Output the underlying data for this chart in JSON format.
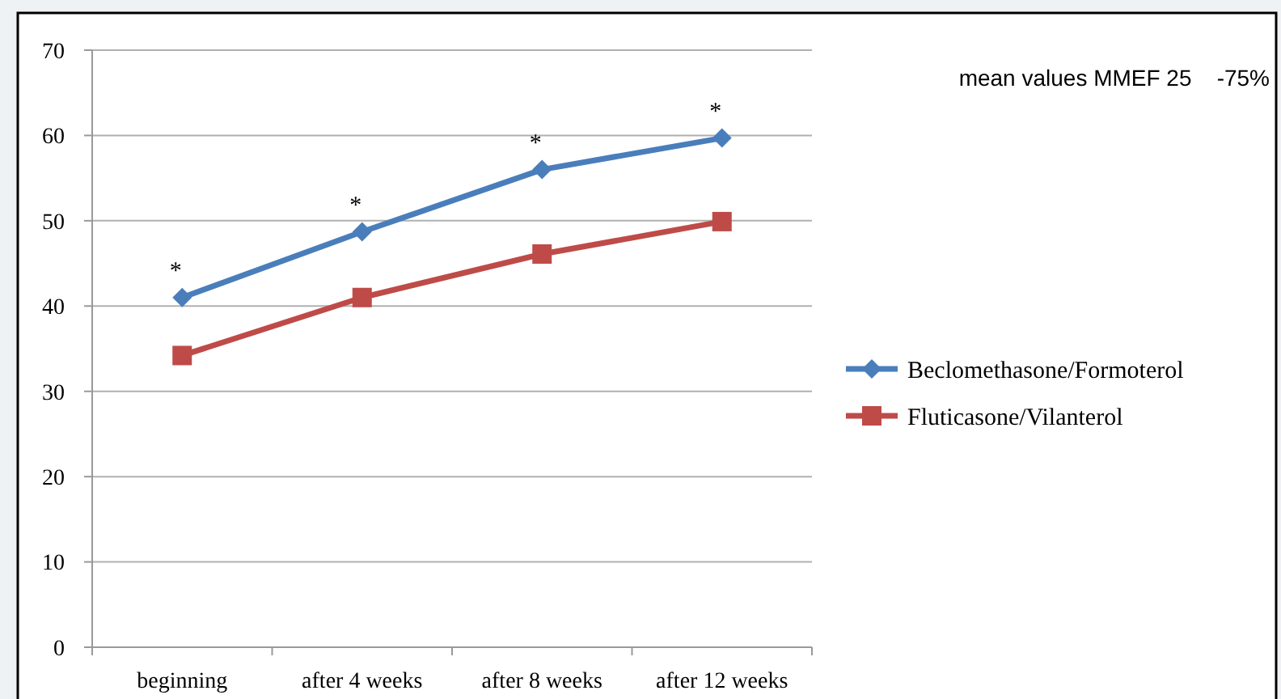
{
  "chart_data": {
    "type": "line",
    "title": "mean values MMEF 25    -75%",
    "categories": [
      "beginning",
      "after 4 weeks",
      "after 8 weeks",
      "after 12 weeks"
    ],
    "series": [
      {
        "name": "Beclomethasone/Formoterol",
        "color": "#4a7ebb",
        "values": [
          41,
          48.7,
          56,
          59.7
        ],
        "marker": "diamond"
      },
      {
        "name": "Fluticasone/Vilanterol",
        "color": "#be4b48",
        "values": [
          34.2,
          41,
          46.1,
          49.9
        ],
        "marker": "square"
      }
    ],
    "annotations": [
      {
        "text": "*",
        "x": "beginning",
        "y": 41
      },
      {
        "text": "*",
        "x": "after 4 weeks",
        "y": 48.7
      },
      {
        "text": "*",
        "x": "after 8 weeks",
        "y": 56
      },
      {
        "text": "*",
        "x": "after 12 weeks",
        "y": 59.7
      }
    ],
    "ylim": [
      0,
      70
    ],
    "yticks": [
      0,
      10,
      20,
      30,
      40,
      50,
      60,
      70
    ],
    "grid": "y",
    "legend": "right",
    "line_style": "solid"
  }
}
